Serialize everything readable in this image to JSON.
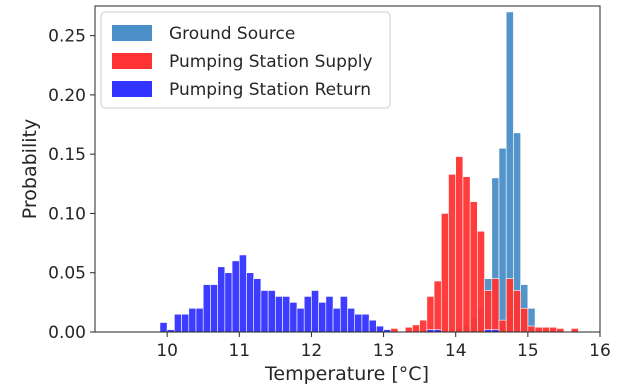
{
  "chart_data": {
    "type": "histogram",
    "xlabel": "Temperature [°C]",
    "ylabel": "Probability",
    "xlim": [
      9,
      16
    ],
    "ylim": [
      0,
      0.275
    ],
    "xticks": [
      "10",
      "11",
      "12",
      "13",
      "14",
      "15",
      "16"
    ],
    "yticks": [
      "0.00",
      "0.05",
      "0.10",
      "0.15",
      "0.20",
      "0.25"
    ],
    "grid": false,
    "legend_position": "top-left",
    "bin_width": 0.1,
    "series": [
      {
        "name": "Ground Source",
        "color": "#4a8fc7",
        "bins": [
          [
            14.0,
            0.003
          ],
          [
            14.1,
            0.006
          ],
          [
            14.2,
            0.012
          ],
          [
            14.3,
            0.02
          ],
          [
            14.4,
            0.045
          ],
          [
            14.5,
            0.13
          ],
          [
            14.6,
            0.155
          ],
          [
            14.7,
            0.27
          ],
          [
            14.8,
            0.168
          ],
          [
            14.9,
            0.04
          ],
          [
            15.0,
            0.02
          ]
        ]
      },
      {
        "name": "Pumping Station Supply",
        "color": "#ff3333",
        "bins": [
          [
            13.1,
            0.003
          ],
          [
            13.3,
            0.004
          ],
          [
            13.4,
            0.006
          ],
          [
            13.5,
            0.01
          ],
          [
            13.6,
            0.03
          ],
          [
            13.7,
            0.043
          ],
          [
            13.8,
            0.1
          ],
          [
            13.9,
            0.133
          ],
          [
            14.0,
            0.148
          ],
          [
            14.1,
            0.131
          ],
          [
            14.2,
            0.11
          ],
          [
            14.3,
            0.085
          ],
          [
            14.4,
            0.035
          ],
          [
            14.5,
            0.045
          ],
          [
            14.6,
            0.01
          ],
          [
            14.7,
            0.045
          ],
          [
            14.8,
            0.035
          ],
          [
            14.9,
            0.02
          ],
          [
            15.0,
            0.005
          ],
          [
            15.1,
            0.004
          ],
          [
            15.2,
            0.004
          ],
          [
            15.3,
            0.004
          ],
          [
            15.4,
            0.003
          ],
          [
            15.6,
            0.003
          ]
        ]
      },
      {
        "name": "Pumping Station Return",
        "color": "#3333ff",
        "bins": [
          [
            9.9,
            0.008
          ],
          [
            10.0,
            0.002
          ],
          [
            10.1,
            0.015
          ],
          [
            10.2,
            0.015
          ],
          [
            10.3,
            0.02
          ],
          [
            10.4,
            0.02
          ],
          [
            10.5,
            0.04
          ],
          [
            10.6,
            0.04
          ],
          [
            10.7,
            0.055
          ],
          [
            10.8,
            0.05
          ],
          [
            10.9,
            0.06
          ],
          [
            11.0,
            0.065
          ],
          [
            11.1,
            0.05
          ],
          [
            11.2,
            0.045
          ],
          [
            11.3,
            0.035
          ],
          [
            11.4,
            0.035
          ],
          [
            11.5,
            0.03
          ],
          [
            11.6,
            0.03
          ],
          [
            11.7,
            0.025
          ],
          [
            11.8,
            0.02
          ],
          [
            11.9,
            0.03
          ],
          [
            12.0,
            0.035
          ],
          [
            12.1,
            0.025
          ],
          [
            12.2,
            0.03
          ],
          [
            12.3,
            0.02
          ],
          [
            12.4,
            0.03
          ],
          [
            12.5,
            0.02
          ],
          [
            12.6,
            0.015
          ],
          [
            12.7,
            0.015
          ],
          [
            12.8,
            0.01
          ],
          [
            12.9,
            0.005
          ],
          [
            13.0,
            0.002
          ],
          [
            13.6,
            0.002
          ],
          [
            13.7,
            0.002
          ],
          [
            14.4,
            0.002
          ],
          [
            14.5,
            0.002
          ]
        ]
      }
    ]
  }
}
